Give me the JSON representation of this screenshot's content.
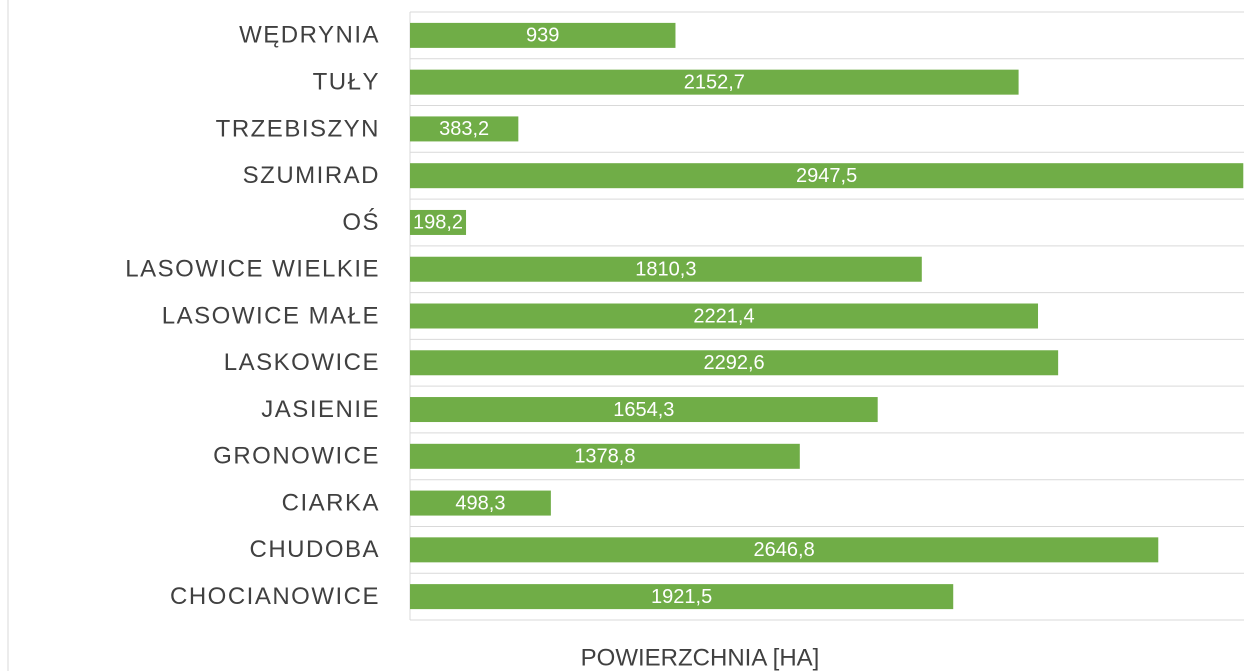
{
  "chart_data": {
    "type": "bar",
    "orientation": "horizontal",
    "xlabel": "POWIERZCHNIA [HA]",
    "categories": [
      "WĘDRYNIA",
      "TUŁY",
      "TRZEBISZYN",
      "SZUMIRAD",
      "OŚ",
      "LASOWICE WIELKIE",
      "LASOWICE MAŁE",
      "LASKOWICE",
      "JASIENIE",
      "GRONOWICE",
      "CIARKA",
      "CHUDOBA",
      "CHOCIANOWICE"
    ],
    "values": [
      939,
      2152.7,
      383.2,
      2947.5,
      198.2,
      1810.3,
      2221.4,
      2292.6,
      1654.3,
      1378.8,
      498.3,
      2646.8,
      1921.5
    ],
    "value_labels": [
      "939",
      "2152,7",
      "383,2",
      "2947,5",
      "198,2",
      "1810,3",
      "2221,4",
      "2292,6",
      "1654,3",
      "1378,8",
      "498,3",
      "2646,8",
      "1921,5"
    ],
    "color": "#70ad47",
    "xlim": [
      0,
      2950
    ],
    "grid": true
  }
}
